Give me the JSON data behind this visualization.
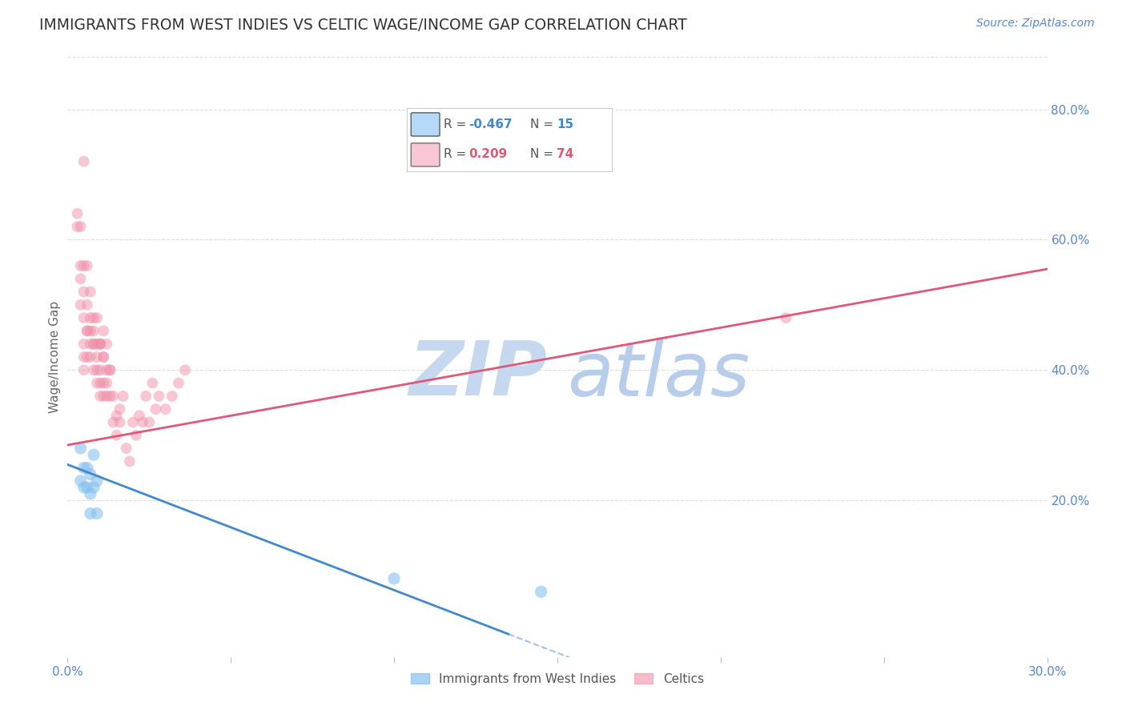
{
  "title": "IMMIGRANTS FROM WEST INDIES VS CELTIC WAGE/INCOME GAP CORRELATION CHART",
  "source": "Source: ZipAtlas.com",
  "ylabel": "Wage/Income Gap",
  "xlim": [
    0.0,
    0.3
  ],
  "ylim": [
    -0.04,
    0.88
  ],
  "ytick_right": [
    0.2,
    0.4,
    0.6,
    0.8
  ],
  "ytick_right_labels": [
    "20.0%",
    "40.0%",
    "60.0%",
    "80.0%"
  ],
  "blue_color": "#85C0F0",
  "pink_color": "#F090A8",
  "blue_line_color": "#4488CC",
  "pink_line_color": "#E05878",
  "watermark_zip_color": "#C5D8F0",
  "watermark_atlas_color": "#B8CCEC",
  "legend_R_blue": "-0.467",
  "legend_N_blue": "15",
  "legend_R_pink": "0.209",
  "legend_N_pink": "74",
  "legend_label_blue": "Immigrants from West Indies",
  "legend_label_pink": "Celtics",
  "blue_x": [
    0.004,
    0.004,
    0.005,
    0.005,
    0.006,
    0.006,
    0.007,
    0.007,
    0.007,
    0.008,
    0.008,
    0.009,
    0.009,
    0.1,
    0.145
  ],
  "blue_y": [
    0.28,
    0.23,
    0.25,
    0.22,
    0.25,
    0.22,
    0.24,
    0.21,
    0.18,
    0.27,
    0.22,
    0.23,
    0.18,
    0.08,
    0.06
  ],
  "pink_x": [
    0.003,
    0.004,
    0.004,
    0.005,
    0.005,
    0.005,
    0.005,
    0.006,
    0.006,
    0.007,
    0.007,
    0.007,
    0.008,
    0.008,
    0.008,
    0.009,
    0.009,
    0.009,
    0.01,
    0.01,
    0.01,
    0.01,
    0.011,
    0.011,
    0.011,
    0.012,
    0.012,
    0.013,
    0.013,
    0.014,
    0.015,
    0.016,
    0.017,
    0.018,
    0.019,
    0.02,
    0.021,
    0.022,
    0.023,
    0.024,
    0.025,
    0.026,
    0.027,
    0.028,
    0.03,
    0.032,
    0.034,
    0.036,
    0.004,
    0.005,
    0.006,
    0.007,
    0.008,
    0.009,
    0.01,
    0.011,
    0.012,
    0.013,
    0.014,
    0.015,
    0.016,
    0.003,
    0.004,
    0.005,
    0.006,
    0.007,
    0.008,
    0.009,
    0.01,
    0.011,
    0.012,
    0.22,
    0.005,
    0.006
  ],
  "pink_y": [
    0.62,
    0.5,
    0.54,
    0.4,
    0.42,
    0.44,
    0.48,
    0.42,
    0.46,
    0.42,
    0.44,
    0.46,
    0.4,
    0.44,
    0.48,
    0.38,
    0.4,
    0.44,
    0.38,
    0.36,
    0.4,
    0.44,
    0.36,
    0.38,
    0.42,
    0.36,
    0.38,
    0.36,
    0.4,
    0.32,
    0.33,
    0.34,
    0.36,
    0.28,
    0.26,
    0.32,
    0.3,
    0.33,
    0.32,
    0.36,
    0.32,
    0.38,
    0.34,
    0.36,
    0.34,
    0.36,
    0.38,
    0.4,
    0.62,
    0.56,
    0.46,
    0.48,
    0.44,
    0.42,
    0.44,
    0.46,
    0.44,
    0.4,
    0.36,
    0.3,
    0.32,
    0.64,
    0.56,
    0.52,
    0.5,
    0.52,
    0.46,
    0.48,
    0.44,
    0.42,
    0.4,
    0.48,
    0.72,
    0.56
  ],
  "blue_marker_size": 120,
  "pink_marker_size": 100,
  "background_color": "#FFFFFF",
  "grid_color": "#DDDDDD",
  "axis_color": "#5588CC",
  "title_color": "#333333",
  "title_fontsize": 13.5,
  "ylabel_fontsize": 11,
  "tick_fontsize": 11,
  "source_fontsize": 10,
  "pink_line_x0": 0.0,
  "pink_line_y0": 0.285,
  "pink_line_x1": 0.3,
  "pink_line_y1": 0.555,
  "blue_line_x0": 0.0,
  "blue_line_y0": 0.255,
  "blue_line_x1": 0.135,
  "blue_line_y1": -0.005
}
